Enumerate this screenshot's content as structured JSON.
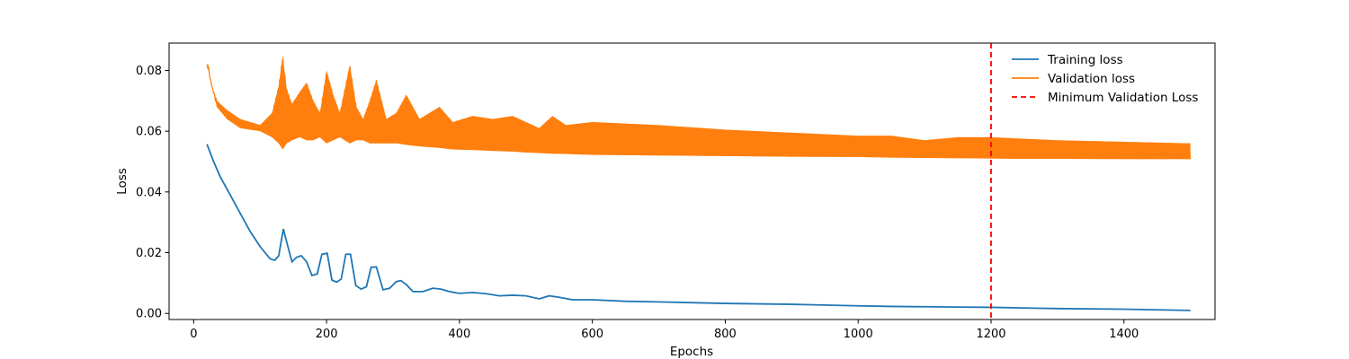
{
  "chart_data": {
    "type": "line",
    "title": "",
    "xlabel": "Epochs",
    "ylabel": "Loss",
    "xlim": [
      -37,
      1537
    ],
    "ylim": [
      -0.002,
      0.089
    ],
    "x_ticks": [
      0,
      200,
      400,
      600,
      800,
      1000,
      1200,
      1400
    ],
    "x_tick_labels": [
      "0",
      "200",
      "400",
      "600",
      "800",
      "1000",
      "1200",
      "1400"
    ],
    "y_ticks": [
      0.0,
      0.02,
      0.04,
      0.06,
      0.08
    ],
    "y_tick_labels": [
      "0.00",
      "0.02",
      "0.04",
      "0.06",
      "0.08"
    ],
    "grid": false,
    "legend_position": "top-right",
    "series": [
      {
        "name": "Training loss",
        "color": "#1f77b4",
        "x": [
          20,
          30,
          40,
          55,
          70,
          85,
          100,
          115,
          122,
          128,
          135,
          140,
          148,
          155,
          162,
          170,
          178,
          186,
          193,
          201,
          208,
          215,
          222,
          229,
          236,
          244,
          252,
          260,
          267,
          275,
          285,
          295,
          305,
          312,
          320,
          330,
          345,
          360,
          372,
          385,
          400,
          420,
          440,
          460,
          480,
          500,
          520,
          535,
          550,
          570,
          600,
          650,
          700,
          800,
          900,
          1000,
          1050,
          1100,
          1150,
          1200,
          1250,
          1300,
          1400,
          1500
        ],
        "y": [
          0.0557,
          0.05,
          0.045,
          0.039,
          0.033,
          0.027,
          0.022,
          0.018,
          0.0175,
          0.019,
          0.0278,
          0.0235,
          0.017,
          0.0185,
          0.019,
          0.017,
          0.0125,
          0.013,
          0.0195,
          0.0198,
          0.011,
          0.0103,
          0.0113,
          0.0195,
          0.0195,
          0.0092,
          0.008,
          0.0088,
          0.0152,
          0.0153,
          0.0078,
          0.0083,
          0.0105,
          0.0108,
          0.0095,
          0.0072,
          0.0072,
          0.0083,
          0.008,
          0.0072,
          0.0066,
          0.0069,
          0.0065,
          0.0058,
          0.006,
          0.0058,
          0.0048,
          0.0058,
          0.0053,
          0.0045,
          0.0045,
          0.004,
          0.0038,
          0.0033,
          0.003,
          0.0025,
          0.0023,
          0.0022,
          0.0021,
          0.002,
          0.0018,
          0.0016,
          0.0014,
          0.001
        ]
      },
      {
        "name": "Validation loss",
        "color": "#ff7f0e",
        "x": [
          20,
          22,
          27,
          35,
          50,
          70,
          100,
          118,
          128,
          134,
          140,
          148,
          160,
          170,
          180,
          190,
          200,
          210,
          220,
          235,
          245,
          255,
          265,
          275,
          290,
          305,
          320,
          340,
          370,
          390,
          420,
          450,
          480,
          500,
          520,
          540,
          560,
          600,
          700,
          800,
          900,
          1000,
          1050,
          1100,
          1150,
          1200,
          1250,
          1300,
          1400,
          1500
        ],
        "y_upper": [
          0.082,
          0.082,
          0.075,
          0.07,
          0.067,
          0.064,
          0.062,
          0.066,
          0.075,
          0.085,
          0.074,
          0.069,
          0.073,
          0.076,
          0.07,
          0.066,
          0.08,
          0.072,
          0.066,
          0.082,
          0.068,
          0.064,
          0.07,
          0.077,
          0.064,
          0.066,
          0.072,
          0.064,
          0.068,
          0.063,
          0.065,
          0.064,
          0.065,
          0.063,
          0.061,
          0.065,
          0.062,
          0.063,
          0.062,
          0.0605,
          0.0595,
          0.0585,
          0.0585,
          0.057,
          0.058,
          0.058,
          0.0575,
          0.057,
          0.0565,
          0.056
        ],
        "y_lower": [
          0.082,
          0.08,
          0.075,
          0.068,
          0.064,
          0.061,
          0.06,
          0.058,
          0.056,
          0.054,
          0.056,
          0.057,
          0.058,
          0.057,
          0.057,
          0.058,
          0.056,
          0.057,
          0.058,
          0.056,
          0.057,
          0.057,
          0.056,
          0.056,
          0.056,
          0.056,
          0.0555,
          0.055,
          0.0545,
          0.054,
          0.0538,
          0.0535,
          0.0533,
          0.053,
          0.0528,
          0.0526,
          0.0525,
          0.0522,
          0.052,
          0.0518,
          0.0516,
          0.0515,
          0.0513,
          0.0512,
          0.0511,
          0.051,
          0.0509,
          0.0509,
          0.0508,
          0.0508
        ]
      }
    ],
    "vlines": [
      {
        "name": "Minimum Validation Loss",
        "x": 1200,
        "color": "#ff0000",
        "style": "dashed"
      }
    ]
  }
}
